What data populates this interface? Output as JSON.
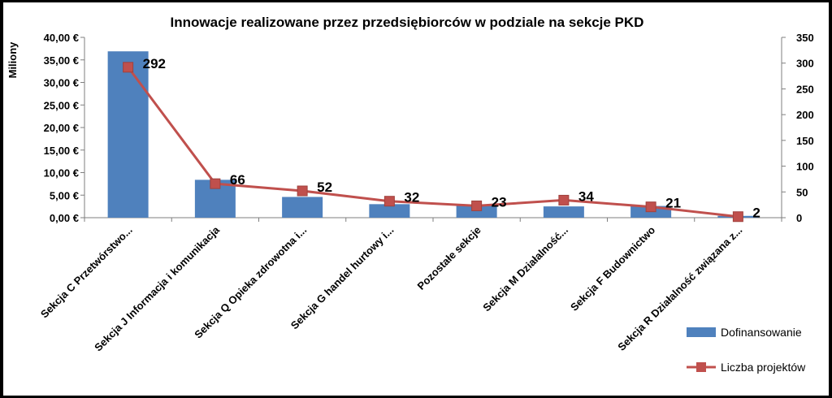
{
  "chart_data": {
    "type": "bar",
    "title": "Innowacje realizowane przez przedsiębiorców w podziale na sekcje PKD",
    "ylabel": "Miliony",
    "categories": [
      "Sekcja C Przetwórstwo...",
      "Sekcja J Informacja i komunikacja",
      "Sekcja Q Opieka zdrowotna i...",
      "Sekcja G handel hurtowy i...",
      "Pozostałe sekcje",
      "Sekcja M Działalność...",
      "Sekcja F Budownictwo",
      "Sekcja R Działalność związana z..."
    ],
    "series": [
      {
        "name": "Dofinansowanie",
        "type": "bar",
        "axis": "left",
        "color": "#4F81BD",
        "values": [
          36.9,
          8.4,
          4.6,
          3.0,
          2.7,
          2.5,
          2.6,
          0.4
        ]
      },
      {
        "name": "Liczba projektów",
        "type": "line",
        "axis": "right",
        "color": "#C0504D",
        "values": [
          292,
          66,
          52,
          32,
          23,
          34,
          21,
          2
        ]
      }
    ],
    "ylim": [
      0,
      40
    ],
    "yticks": [
      "0,00 €",
      "5,00 €",
      "10,00 €",
      "15,00 €",
      "20,00 €",
      "25,00 €",
      "30,00 €",
      "35,00 €",
      "40,00 €"
    ],
    "y2lim": [
      0,
      350
    ],
    "y2ticks": [
      "0",
      "50",
      "100",
      "150",
      "200",
      "250",
      "300",
      "350"
    ],
    "grid": false,
    "legend_position": "bottom-right",
    "colors": {
      "background": "#000000",
      "plot_area": "#FFFFFF",
      "axis": "#7F7F7F"
    }
  }
}
